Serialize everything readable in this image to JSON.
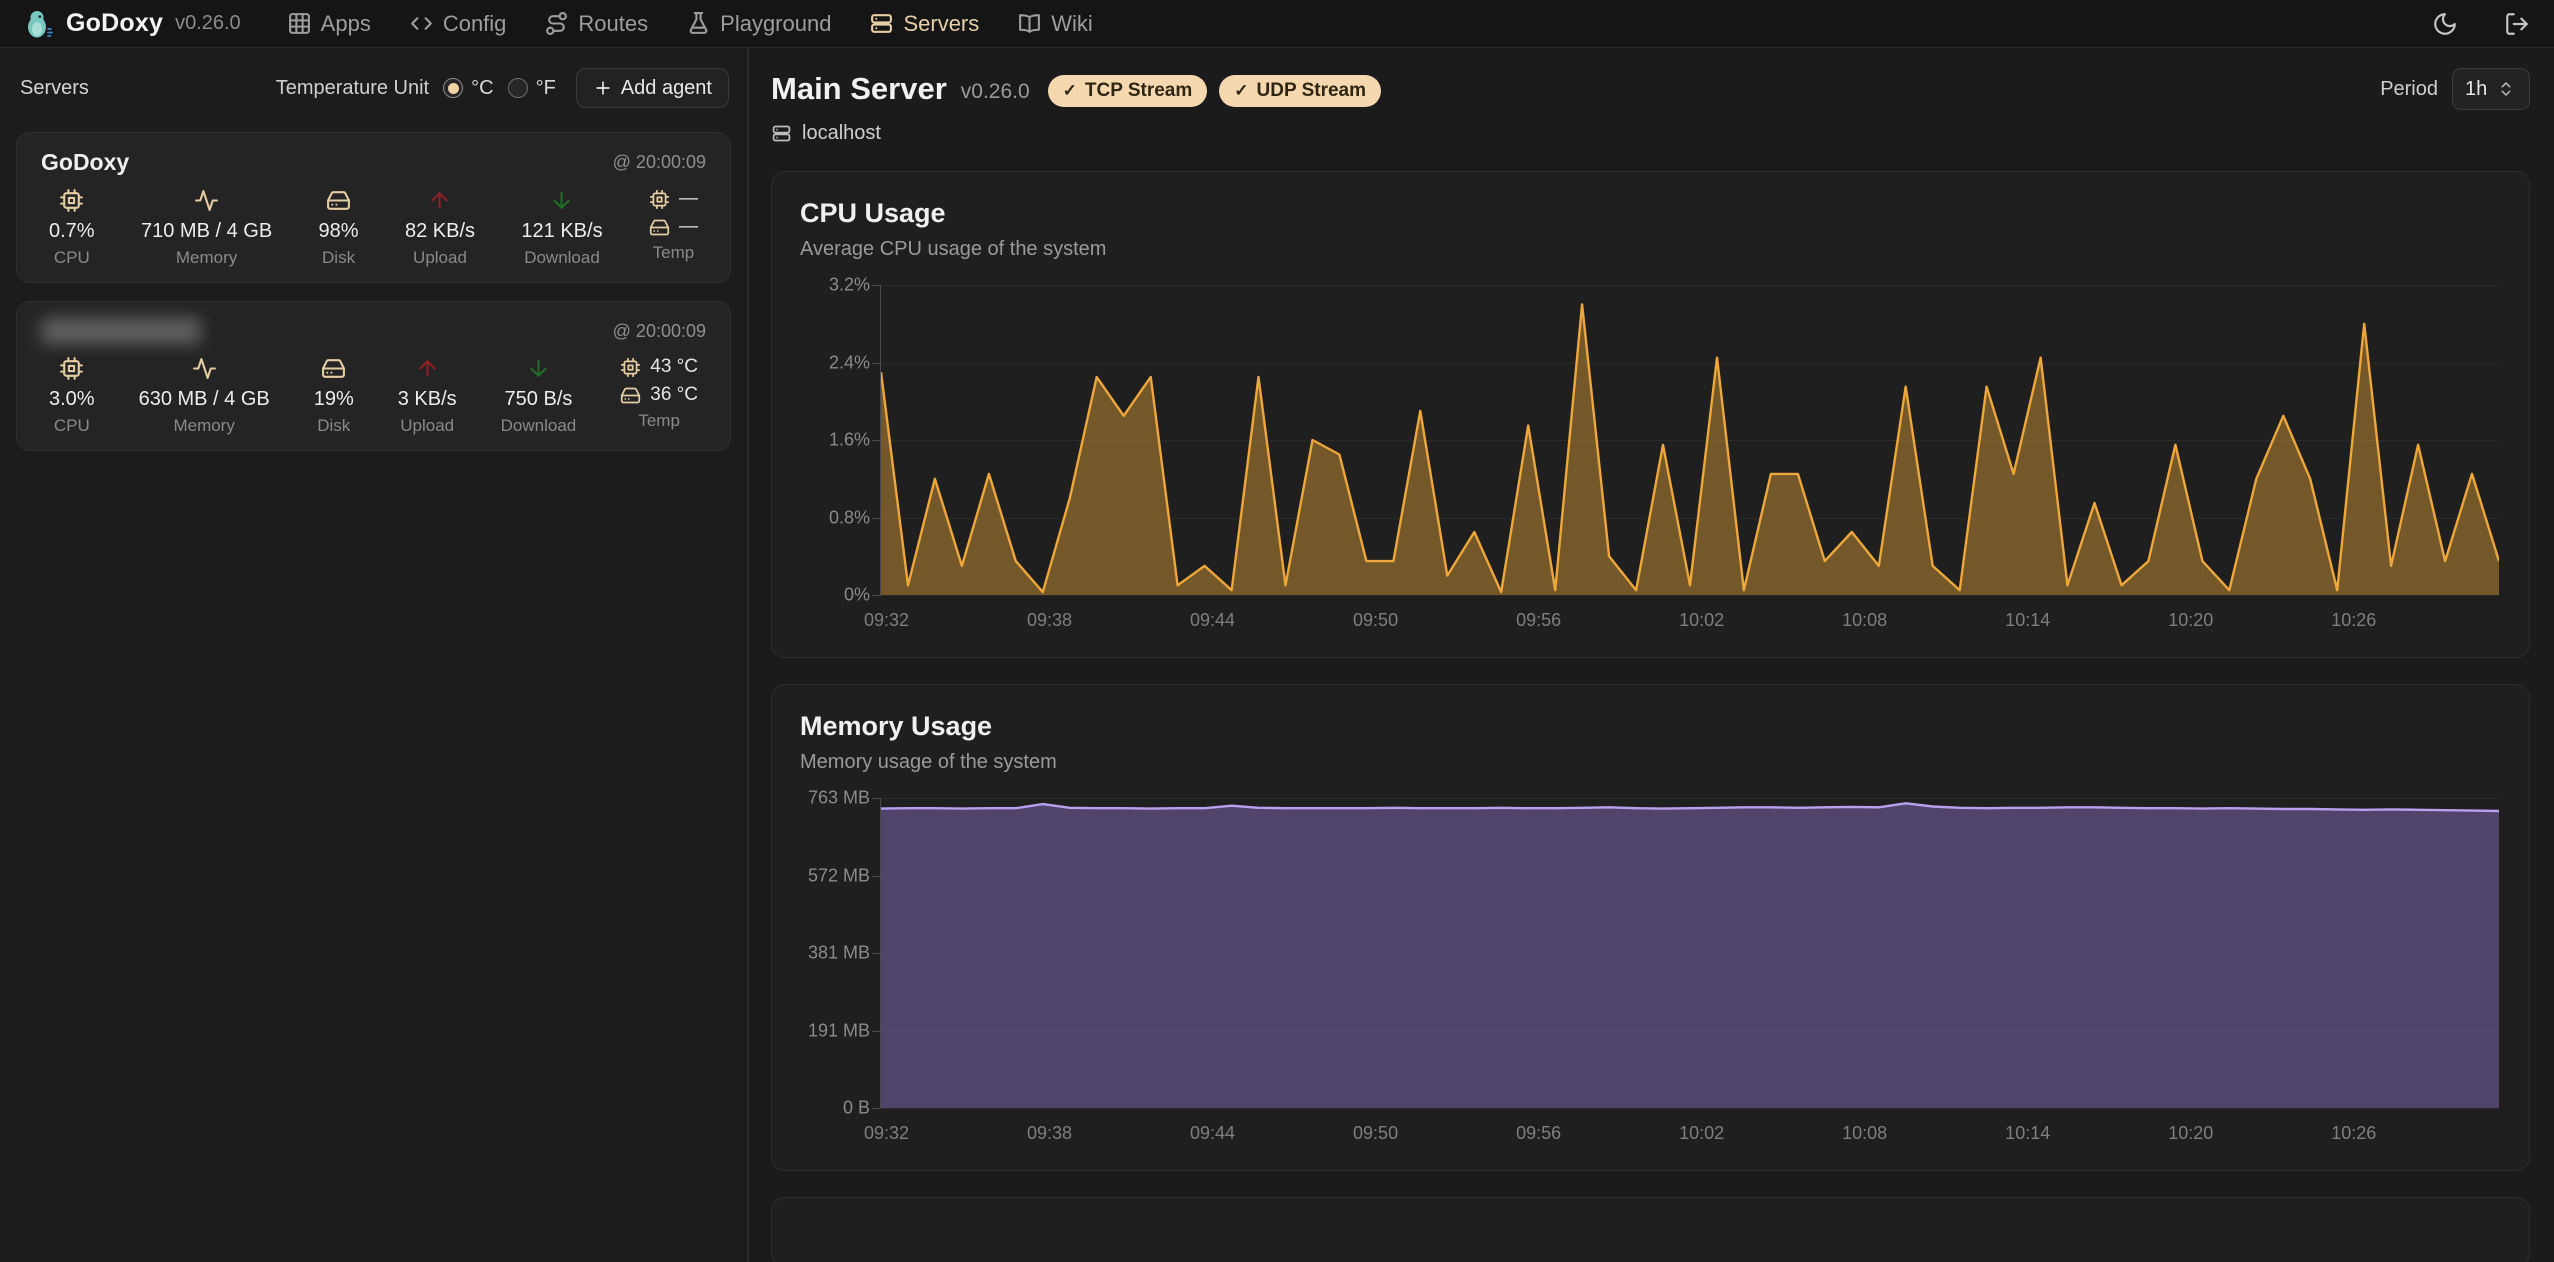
{
  "navbar": {
    "brand": "GoDoxy",
    "version": "v0.26.0",
    "items": [
      {
        "label": "Apps",
        "active": false
      },
      {
        "label": "Config",
        "active": false
      },
      {
        "label": "Routes",
        "active": false
      },
      {
        "label": "Playground",
        "active": false
      },
      {
        "label": "Servers",
        "active": true
      },
      {
        "label": "Wiki",
        "active": false
      }
    ]
  },
  "sidebar": {
    "title": "Servers",
    "temp_unit_label": "Temperature Unit",
    "celsius": "°C",
    "fahrenheit": "°F",
    "add_agent": "Add agent",
    "servers": [
      {
        "name": "GoDoxy",
        "redacted": false,
        "timestamp": "@ 20:00:09",
        "cpu": "0.7%",
        "cpu_label": "CPU",
        "memory": "710 MB / 4 GB",
        "memory_label": "Memory",
        "disk": "98%",
        "disk_label": "Disk",
        "upload": "82 KB/s",
        "upload_label": "Upload",
        "download": "121 KB/s",
        "download_label": "Download",
        "temp_cpu": "—",
        "temp_disk": "—",
        "temp_label": "Temp"
      },
      {
        "name": "",
        "redacted": true,
        "timestamp": "@ 20:00:09",
        "cpu": "3.0%",
        "cpu_label": "CPU",
        "memory": "630 MB / 4 GB",
        "memory_label": "Memory",
        "disk": "19%",
        "disk_label": "Disk",
        "upload": "3 KB/s",
        "upload_label": "Upload",
        "download": "750 B/s",
        "download_label": "Download",
        "temp_cpu": "43 °C",
        "temp_disk": "36 °C",
        "temp_label": "Temp"
      }
    ]
  },
  "main": {
    "title": "Main Server",
    "version": "v0.26.0",
    "badge_check": "✓",
    "badges": [
      "TCP Stream",
      "UDP Stream"
    ],
    "host": "localhost",
    "period_label": "Period",
    "period_value": "1h"
  },
  "chart_data": [
    {
      "type": "area",
      "title": "CPU Usage",
      "subtitle": "Average CPU usage of the system",
      "ymax": 3.2,
      "y_ticks": [
        "3.2%",
        "2.4%",
        "1.6%",
        "0.8%",
        "0%"
      ],
      "x_ticks": [
        "09:32",
        "09:38",
        "09:44",
        "09:50",
        "09:56",
        "10:02",
        "10:08",
        "10:14",
        "10:20",
        "10:26"
      ],
      "legend": "off",
      "grid": "horizontal",
      "series": [
        {
          "name": "cpu_percent",
          "color": "#eda73a",
          "fill": "rgba(237,167,58,0.42)",
          "values": [
            2.3,
            0.1,
            1.2,
            0.3,
            1.25,
            0.35,
            0.03,
            1.0,
            2.25,
            1.85,
            2.25,
            0.1,
            0.3,
            0.05,
            2.25,
            0.1,
            1.6,
            1.45,
            0.35,
            0.35,
            1.9,
            0.2,
            0.65,
            0.03,
            1.75,
            0.05,
            3.0,
            0.4,
            0.05,
            1.55,
            0.1,
            2.45,
            0.05,
            1.25,
            1.25,
            0.35,
            0.65,
            0.3,
            2.15,
            0.3,
            0.05,
            2.15,
            1.25,
            2.45,
            0.1,
            0.95,
            0.1,
            0.35,
            1.55,
            0.35,
            0.05,
            1.2,
            1.85,
            1.2,
            0.05,
            2.8,
            0.3,
            1.55,
            0.35,
            1.25,
            0.35
          ]
        }
      ]
    },
    {
      "type": "area",
      "title": "Memory Usage",
      "subtitle": "Memory usage of the system",
      "ymax": 763,
      "y_ticks": [
        "763 MB",
        "572 MB",
        "381 MB",
        "191 MB",
        "0 B"
      ],
      "x_ticks": [
        "09:32",
        "09:38",
        "09:44",
        "09:50",
        "09:56",
        "10:02",
        "10:08",
        "10:14",
        "10:20",
        "10:26"
      ],
      "legend": "off",
      "grid": "horizontal",
      "series": [
        {
          "name": "memory_mb",
          "color": "#b9a0ef",
          "fill": "rgba(148,120,210,0.42)",
          "values": [
            737,
            738,
            738,
            737,
            738,
            738,
            748,
            739,
            738,
            738,
            737,
            738,
            738,
            744,
            739,
            738,
            738,
            738,
            738,
            739,
            738,
            738,
            738,
            739,
            738,
            738,
            739,
            740,
            738,
            737,
            738,
            739,
            740,
            740,
            739,
            740,
            741,
            740,
            750,
            742,
            739,
            738,
            739,
            739,
            740,
            740,
            739,
            738,
            738,
            737,
            738,
            737,
            736,
            736,
            735,
            734,
            735,
            734,
            733,
            732,
            731
          ]
        }
      ]
    }
  ]
}
